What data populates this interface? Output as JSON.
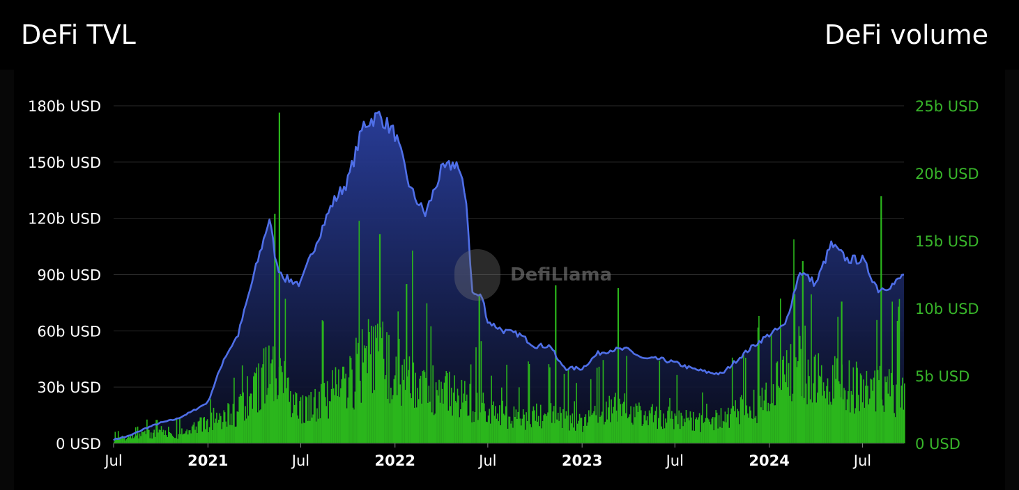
{
  "header": {
    "left_title": "DeFi TVL",
    "right_title": "DeFi volume"
  },
  "watermark": "DefiLlama",
  "colors": {
    "tvl_line": "#4f6fe8",
    "tvl_fill_top": "#2a3f9e",
    "tvl_fill_bottom": "#0a0d1e",
    "volume_bar": "#2bb61c",
    "left_axis_text": "#ffffff",
    "right_axis_text": "#38b52a",
    "grid": "#2a2a2a"
  },
  "chart_data": {
    "type": "area",
    "x_axis": {
      "type": "date",
      "range": [
        "2020-07-01",
        "2024-09-20"
      ],
      "tick_labels": [
        "Jul",
        "2021",
        "Jul",
        "2022",
        "Jul",
        "2023",
        "Jul",
        "2024",
        "Jul"
      ],
      "tick_dates": [
        "2020-07-01",
        "2021-01-01",
        "2021-07-01",
        "2022-01-01",
        "2022-07-01",
        "2023-01-01",
        "2023-07-01",
        "2024-01-01",
        "2024-07-01"
      ]
    },
    "y_left": {
      "ticks": [
        0,
        30,
        60,
        90,
        120,
        150,
        180
      ],
      "tick_labels": [
        "0 USD",
        "30b USD",
        "60b USD",
        "90b USD",
        "120b USD",
        "150b USD",
        "180b USD"
      ],
      "range": [
        0,
        180
      ]
    },
    "y_right": {
      "ticks": [
        0,
        5,
        10,
        15,
        20,
        25
      ],
      "tick_labels": [
        "0 USD",
        "5b USD",
        "10b USD",
        "15b USD",
        "20b USD",
        "25b USD"
      ],
      "range": [
        0,
        25
      ]
    },
    "grid": true,
    "series": [
      {
        "type": "area",
        "axis": "left",
        "x": [
          "2020-07-01",
          "2020-08-01",
          "2020-09-01",
          "2020-10-01",
          "2020-11-01",
          "2020-12-01",
          "2021-01-01",
          "2021-02-01",
          "2021-03-01",
          "2021-04-01",
          "2021-05-01",
          "2021-05-15",
          "2021-06-01",
          "2021-07-01",
          "2021-08-01",
          "2021-09-01",
          "2021-10-01",
          "2021-11-01",
          "2021-12-01",
          "2022-01-01",
          "2022-02-01",
          "2022-03-01",
          "2022-04-01",
          "2022-05-01",
          "2022-05-20",
          "2022-06-01",
          "2022-06-20",
          "2022-07-01",
          "2022-08-01",
          "2022-09-01",
          "2022-10-01",
          "2022-11-01",
          "2022-11-15",
          "2022-12-01",
          "2023-01-01",
          "2023-02-01",
          "2023-03-01",
          "2023-04-01",
          "2023-05-01",
          "2023-06-01",
          "2023-07-01",
          "2023-08-01",
          "2023-09-01",
          "2023-10-01",
          "2023-11-01",
          "2023-12-01",
          "2024-01-01",
          "2024-02-01",
          "2024-03-01",
          "2024-04-01",
          "2024-05-01",
          "2024-06-01",
          "2024-07-01",
          "2024-08-01",
          "2024-09-01",
          "2024-09-20"
        ],
        "values": [
          2,
          4,
          8,
          11,
          13,
          17,
          22,
          45,
          58,
          90,
          120,
          95,
          88,
          85,
          108,
          128,
          140,
          170,
          175,
          165,
          135,
          122,
          145,
          150,
          130,
          80,
          78,
          65,
          60,
          58,
          52,
          52,
          44,
          40,
          40,
          48,
          50,
          50,
          45,
          45,
          43,
          40,
          38,
          37,
          45,
          52,
          58,
          63,
          92,
          85,
          106,
          98,
          98,
          82,
          85,
          90
        ]
      },
      {
        "type": "bar",
        "axis": "right",
        "baseline": [
          {
            "x": "2020-07-01",
            "value": 0.3
          },
          {
            "x": "2020-09-01",
            "value": 0.8
          },
          {
            "x": "2020-11-01",
            "value": 0.7
          },
          {
            "x": "2021-01-01",
            "value": 1.8
          },
          {
            "x": "2021-03-01",
            "value": 2.8
          },
          {
            "x": "2021-05-10",
            "value": 6.5
          },
          {
            "x": "2021-06-15",
            "value": 2.8
          },
          {
            "x": "2021-08-01",
            "value": 3.4
          },
          {
            "x": "2021-10-01",
            "value": 4.8
          },
          {
            "x": "2021-11-15",
            "value": 7.8
          },
          {
            "x": "2022-01-01",
            "value": 6.0
          },
          {
            "x": "2022-03-01",
            "value": 4.5
          },
          {
            "x": "2022-05-01",
            "value": 3.8
          },
          {
            "x": "2022-07-01",
            "value": 2.6
          },
          {
            "x": "2022-09-01",
            "value": 2.2
          },
          {
            "x": "2022-11-01",
            "value": 2.3
          },
          {
            "x": "2023-01-01",
            "value": 1.8
          },
          {
            "x": "2023-03-01",
            "value": 3.0
          },
          {
            "x": "2023-05-01",
            "value": 2.4
          },
          {
            "x": "2023-07-01",
            "value": 2.0
          },
          {
            "x": "2023-09-01",
            "value": 1.6
          },
          {
            "x": "2023-11-01",
            "value": 2.6
          },
          {
            "x": "2024-01-01",
            "value": 3.8
          },
          {
            "x": "2024-03-01",
            "value": 6.8
          },
          {
            "x": "2024-05-01",
            "value": 5.0
          },
          {
            "x": "2024-07-01",
            "value": 4.6
          },
          {
            "x": "2024-09-20",
            "value": 4.0
          }
        ],
        "spikes": [
          {
            "x": "2021-05-19",
            "value": 24.5
          },
          {
            "x": "2021-05-10",
            "value": 17.0
          },
          {
            "x": "2021-12-01",
            "value": 15.5
          },
          {
            "x": "2022-01-22",
            "value": 11.8
          },
          {
            "x": "2022-06-13",
            "value": 11.0
          },
          {
            "x": "2022-11-09",
            "value": 11.7
          },
          {
            "x": "2023-03-11",
            "value": 11.5
          },
          {
            "x": "2024-03-05",
            "value": 13.5
          },
          {
            "x": "2024-08-05",
            "value": 18.3
          },
          {
            "x": "2024-05-20",
            "value": 10.5
          }
        ]
      }
    ]
  }
}
